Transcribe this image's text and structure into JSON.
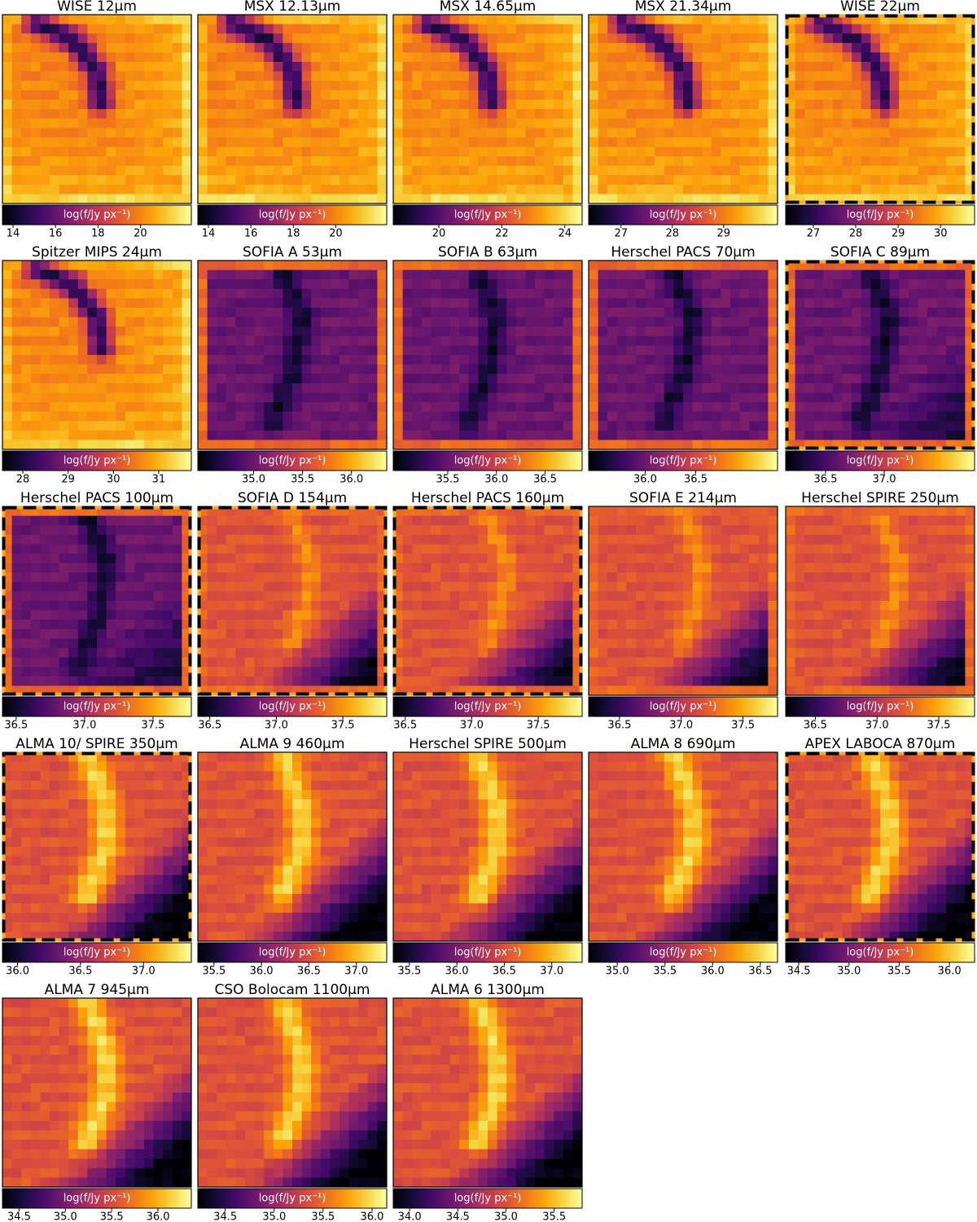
{
  "chart_data": [
    {
      "type": "image",
      "title": "WISE 12μm",
      "colorbar_label": "log(f/Jy px⁻¹)",
      "xlim": [
        13.5,
        22.4
      ],
      "xticks": [
        14,
        16,
        18,
        20
      ],
      "frame": "solid"
    },
    {
      "type": "image",
      "title": "MSX 12.13μm",
      "colorbar_label": "log(f/Jy px⁻¹)",
      "xlim": [
        13.5,
        22.4
      ],
      "xticks": [
        14,
        16,
        18,
        20
      ],
      "frame": "solid"
    },
    {
      "type": "image",
      "title": "MSX 14.65μm",
      "colorbar_label": "log(f/Jy px⁻¹)",
      "xlim": [
        18.55,
        24.55
      ],
      "xticks": [
        20,
        22,
        24
      ],
      "frame": "solid"
    },
    {
      "type": "image",
      "title": "MSX 21.34μm",
      "colorbar_label": "log(f/Jy px⁻¹)",
      "xlim": [
        26.37,
        30.05
      ],
      "xticks": [
        27,
        28,
        29
      ],
      "frame": "solid"
    },
    {
      "type": "image",
      "title": "WISE 22μm",
      "colorbar_label": "log(f/Jy px⁻¹)",
      "xlim": [
        26.35,
        30.8
      ],
      "xticks": [
        27,
        28,
        29,
        30
      ],
      "frame": "dashed"
    },
    {
      "type": "image",
      "title": "Spitzer MIPS 24μm",
      "colorbar_label": "log(f/Jy px⁻¹)",
      "xlim": [
        27.55,
        31.72
      ],
      "xticks": [
        28,
        29,
        30,
        31
      ],
      "frame": "solid"
    },
    {
      "type": "image",
      "title": "SOFIA A 53μm",
      "colorbar_label": "log(f/Jy px⁻¹)",
      "xlim": [
        34.43,
        36.36
      ],
      "xticks": [
        {
          "value": 35,
          "label": "35.0"
        },
        35.5,
        {
          "value": 36,
          "label": "36.0"
        }
      ],
      "frame": "solid"
    },
    {
      "type": "image",
      "title": "SOFIA B 63μm",
      "colorbar_label": "log(f/Jy px⁻¹)",
      "xlim": [
        34.94,
        36.88
      ],
      "xticks": [
        35.5,
        {
          "value": 36,
          "label": "36.0"
        },
        36.5
      ],
      "frame": "solid"
    },
    {
      "type": "image",
      "title": "Herschel PACS 70μm",
      "colorbar_label": "log(f/Jy px⁻¹)",
      "xlim": [
        35.44,
        37.31
      ],
      "xticks": [
        {
          "value": 36,
          "label": "36.0"
        },
        36.5
      ],
      "frame": "solid"
    },
    {
      "type": "image",
      "title": "SOFIA C 89μm",
      "colorbar_label": "log(f/Jy px⁻¹)",
      "xlim": [
        36.16,
        37.77
      ],
      "xticks": [
        36.5,
        {
          "value": 37,
          "label": "37.0"
        }
      ],
      "frame": "dashed"
    },
    {
      "type": "image",
      "title": "Herschel PACS 100μm",
      "colorbar_label": "log(f/Jy px⁻¹)",
      "xlim": [
        36.4,
        37.78
      ],
      "xticks": [
        36.5,
        {
          "value": 37,
          "label": "37.0"
        },
        37.5
      ],
      "frame": "dashed"
    },
    {
      "type": "image",
      "title": "SOFIA D 154μm",
      "colorbar_label": "log(f/Jy px⁻¹)",
      "xlim": [
        36.41,
        37.83
      ],
      "xticks": [
        36.5,
        {
          "value": 37,
          "label": "37.0"
        },
        37.5
      ],
      "frame": "dashed"
    },
    {
      "type": "image",
      "title": "Herschel PACS 160μm",
      "colorbar_label": "log(f/Jy px⁻¹)",
      "xlim": [
        36.41,
        37.83
      ],
      "xticks": [
        36.5,
        {
          "value": 37,
          "label": "37.0"
        },
        37.5
      ],
      "frame": "dashed"
    },
    {
      "type": "image",
      "title": "SOFIA E 214μm",
      "colorbar_label": "log(f/Jy px⁻¹)",
      "xlim": [
        36.25,
        37.78
      ],
      "xticks": [
        36.5,
        {
          "value": 37,
          "label": "37.0"
        },
        37.5
      ],
      "frame": "solid"
    },
    {
      "type": "image",
      "title": "Herschel SPIRE 250μm",
      "colorbar_label": "log(f/Jy px⁻¹)",
      "xlim": [
        36.26,
        37.79
      ],
      "xticks": [
        36.5,
        {
          "value": 37,
          "label": "37.0"
        },
        37.5
      ],
      "frame": "solid"
    },
    {
      "type": "image",
      "title": "ALMA 10/ SPIRE 350μm",
      "colorbar_label": "log(f/Jy px⁻¹)",
      "xlim": [
        35.88,
        37.38
      ],
      "xticks": [
        {
          "value": 36,
          "label": "36.0"
        },
        36.5,
        {
          "value": 37,
          "label": "37.0"
        }
      ],
      "frame": "dashed"
    },
    {
      "type": "image",
      "title": "ALMA 9 460μm",
      "colorbar_label": "log(f/Jy px⁻¹)",
      "xlim": [
        35.33,
        37.32
      ],
      "xticks": [
        35.5,
        {
          "value": 36,
          "label": "36.0"
        },
        36.5,
        {
          "value": 37,
          "label": "37.0"
        }
      ],
      "frame": "solid"
    },
    {
      "type": "image",
      "title": "Herschel SPIRE 500μm",
      "colorbar_label": "log(f/Jy px⁻¹)",
      "xlim": [
        35.33,
        37.32
      ],
      "xticks": [
        35.5,
        {
          "value": 36,
          "label": "36.0"
        },
        36.5,
        {
          "value": 37,
          "label": "37.0"
        }
      ],
      "frame": "solid"
    },
    {
      "type": "image",
      "title": "ALMA 8 690μm",
      "colorbar_label": "log(f/Jy px⁻¹)",
      "xlim": [
        34.7,
        36.68
      ],
      "xticks": [
        {
          "value": 35,
          "label": "35.0"
        },
        35.5,
        {
          "value": 36,
          "label": "36.0"
        },
        36.5
      ],
      "frame": "solid"
    },
    {
      "type": "image",
      "title": "APEX LABOCA 870μm",
      "colorbar_label": "log(f/Jy px⁻¹)",
      "xlim": [
        34.37,
        36.25
      ],
      "xticks": [
        34.5,
        {
          "value": 35,
          "label": "35.0"
        },
        35.5,
        {
          "value": 36,
          "label": "36.0"
        }
      ],
      "frame": "dashed"
    },
    {
      "type": "image",
      "title": "ALMA 7 945μm",
      "colorbar_label": "log(f/Jy px⁻¹)",
      "xlim": [
        34.32,
        36.36
      ],
      "xticks": [
        34.5,
        {
          "value": 35,
          "label": "35.0"
        },
        35.5,
        {
          "value": 36,
          "label": "36.0"
        }
      ],
      "frame": "solid"
    },
    {
      "type": "image",
      "title": "CSO Bolocam 1100μm",
      "colorbar_label": "log(f/Jy px⁻¹)",
      "xlim": [
        34.22,
        36.15
      ],
      "xticks": [
        34.5,
        {
          "value": 35,
          "label": "35.0"
        },
        35.5,
        {
          "value": 36,
          "label": "36.0"
        }
      ],
      "frame": "solid"
    },
    {
      "type": "image",
      "title": "ALMA 6 1300μm",
      "colorbar_label": "log(f/Jy px⁻¹)",
      "xlim": [
        33.83,
        35.79
      ],
      "xticks": [
        {
          "value": 34,
          "label": "34.0"
        },
        34.5,
        {
          "value": 35,
          "label": "35.0"
        },
        35.5
      ],
      "frame": "solid"
    }
  ]
}
